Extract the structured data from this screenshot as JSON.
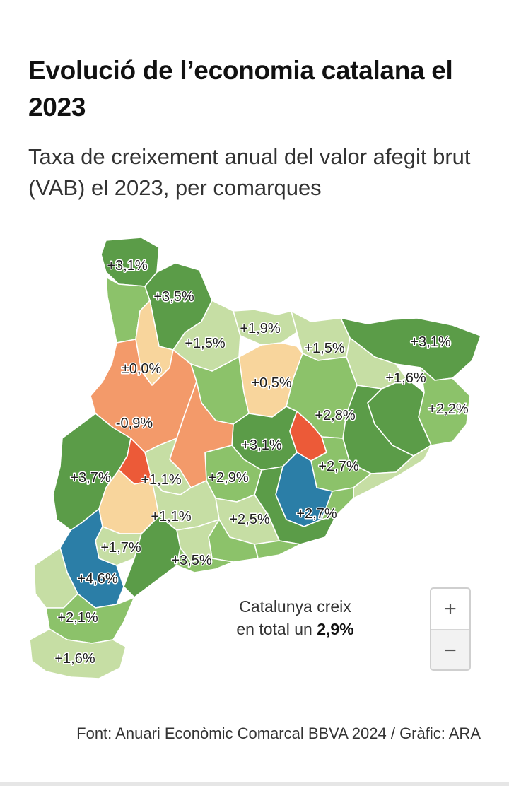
{
  "header": {
    "title": "Evolució de l’economia catalana el 2023",
    "subtitle": "Taxa de creixement anual del valor afegit brut (VAB) el 2023, per comarques"
  },
  "map": {
    "colors": {
      "dark_green": "#5b9c48",
      "mid_green": "#8cc26a",
      "light_green": "#c6dea4",
      "pale_orange": "#f8d59c",
      "orange": "#f39a6a",
      "red": "#ec5a38",
      "blue": "#2b7ea7"
    },
    "labels": [
      "+3,1%",
      "+3,5%",
      "+1,9%",
      "+1,5%",
      "+1,5%",
      "+3,1%",
      "±0,0%",
      "+0,5%",
      "+1,6%",
      "+2,2%",
      "+2,8%",
      "-0,9%",
      "+3,1%",
      "+2,7%",
      "+3,7%",
      "+1,1%",
      "+2,9%",
      "+1,1%",
      "+2,5%",
      "+2,7%",
      "+1,7%",
      "+3,5%",
      "+4,6%",
      "+2,1%",
      "+1,6%"
    ]
  },
  "total": {
    "line1": "Catalunya creix",
    "line2_prefix": "en total un",
    "line2_value": "2,9%"
  },
  "zoom": {
    "in_label": "+",
    "out_label": "−"
  },
  "source": "Font: Anuari Econòmic Comarcal BBVA 2024 / Gràfic: ARA"
}
